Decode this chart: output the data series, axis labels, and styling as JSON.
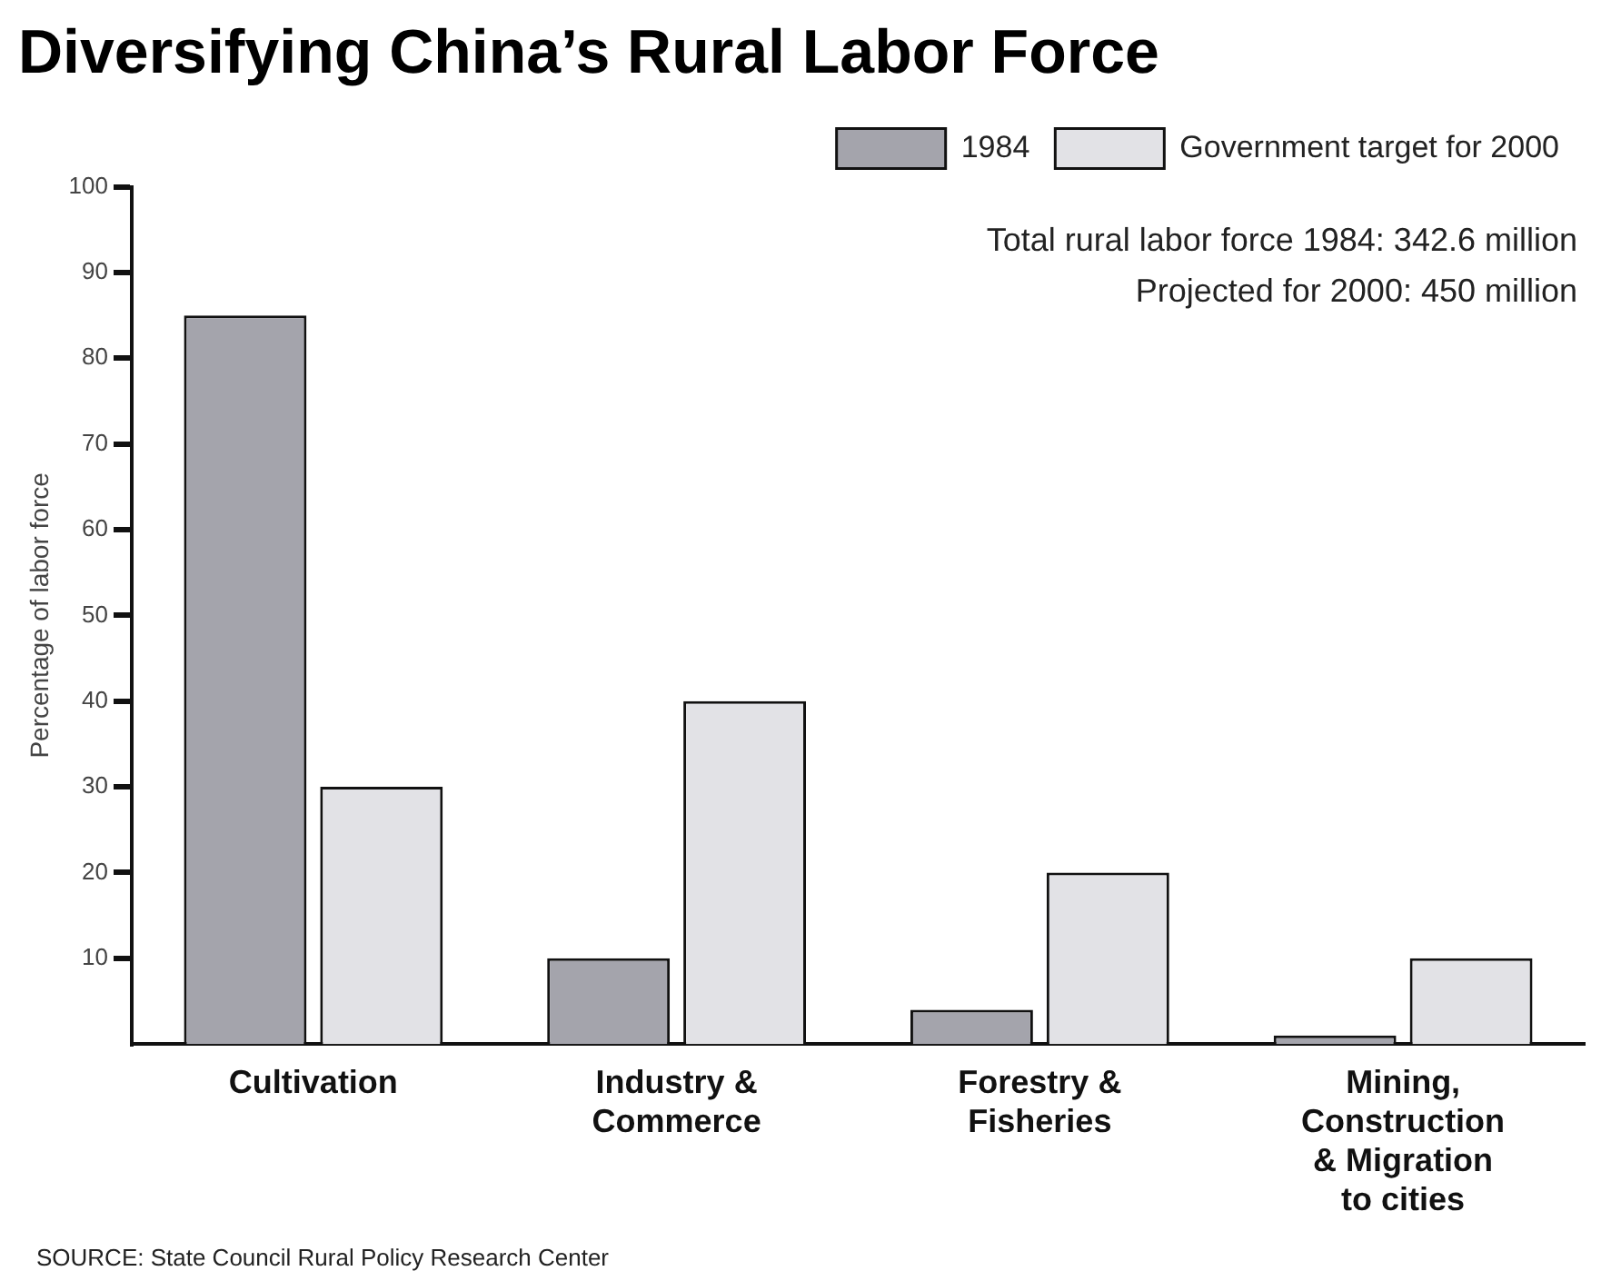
{
  "chart_data": {
    "type": "bar",
    "title": "Diversifying China’s Rural Labor Force",
    "ylabel": "Percentage of labor force",
    "categories": [
      "Cultivation",
      "Industry & Commerce",
      "Forestry & Fisheries",
      "Mining, Construction & Migration to cities"
    ],
    "series": [
      {
        "name": "1984",
        "color": "#a4a4ac",
        "values": [
          85,
          10,
          4,
          1
        ]
      },
      {
        "name": "Government target for 2000",
        "color": "#e2e2e6",
        "values": [
          30,
          40,
          20,
          10
        ]
      }
    ],
    "ylim": [
      0,
      100
    ],
    "yticks": [
      10,
      20,
      30,
      40,
      50,
      60,
      70,
      80,
      90,
      100
    ],
    "grid": false,
    "legend": "top right",
    "annotations": [
      "Total rural labor force 1984: 342.6 million",
      "Projected for 2000: 450 million",
      "SOURCE: State Council Rural Policy Research Center"
    ]
  }
}
